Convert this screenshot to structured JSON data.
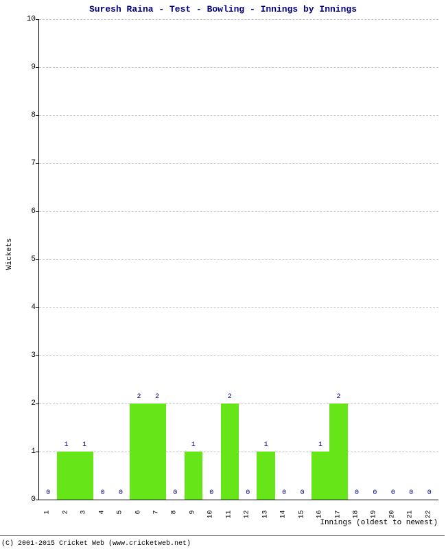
{
  "chart": {
    "type": "bar",
    "title": "Suresh Raina - Test - Bowling - Innings by Innings",
    "title_color": "#000080",
    "title_fontsize": 13,
    "xlabel": "Innings (oldest to newest)",
    "ylabel": "Wickets",
    "label_fontsize": 11,
    "categories": [
      "1",
      "2",
      "3",
      "4",
      "5",
      "6",
      "7",
      "8",
      "9",
      "10",
      "11",
      "12",
      "13",
      "14",
      "15",
      "16",
      "17",
      "18",
      "19",
      "20",
      "21",
      "22"
    ],
    "values": [
      0,
      1,
      1,
      0,
      0,
      2,
      2,
      0,
      1,
      0,
      2,
      0,
      1,
      0,
      0,
      1,
      2,
      0,
      0,
      0,
      0,
      0
    ],
    "bar_color": "#66e619",
    "value_label_color": "#000080",
    "ylim": [
      0,
      10
    ],
    "ytick_step": 1,
    "grid_color": "#c0c0c0",
    "background_color": "#ffffff",
    "axis_color": "#000000",
    "tick_fontsize": 11,
    "bar_width_ratio": 1.0,
    "font_family": "Courier New"
  },
  "copyright": "(C) 2001-2015 Cricket Web (www.cricketweb.net)"
}
